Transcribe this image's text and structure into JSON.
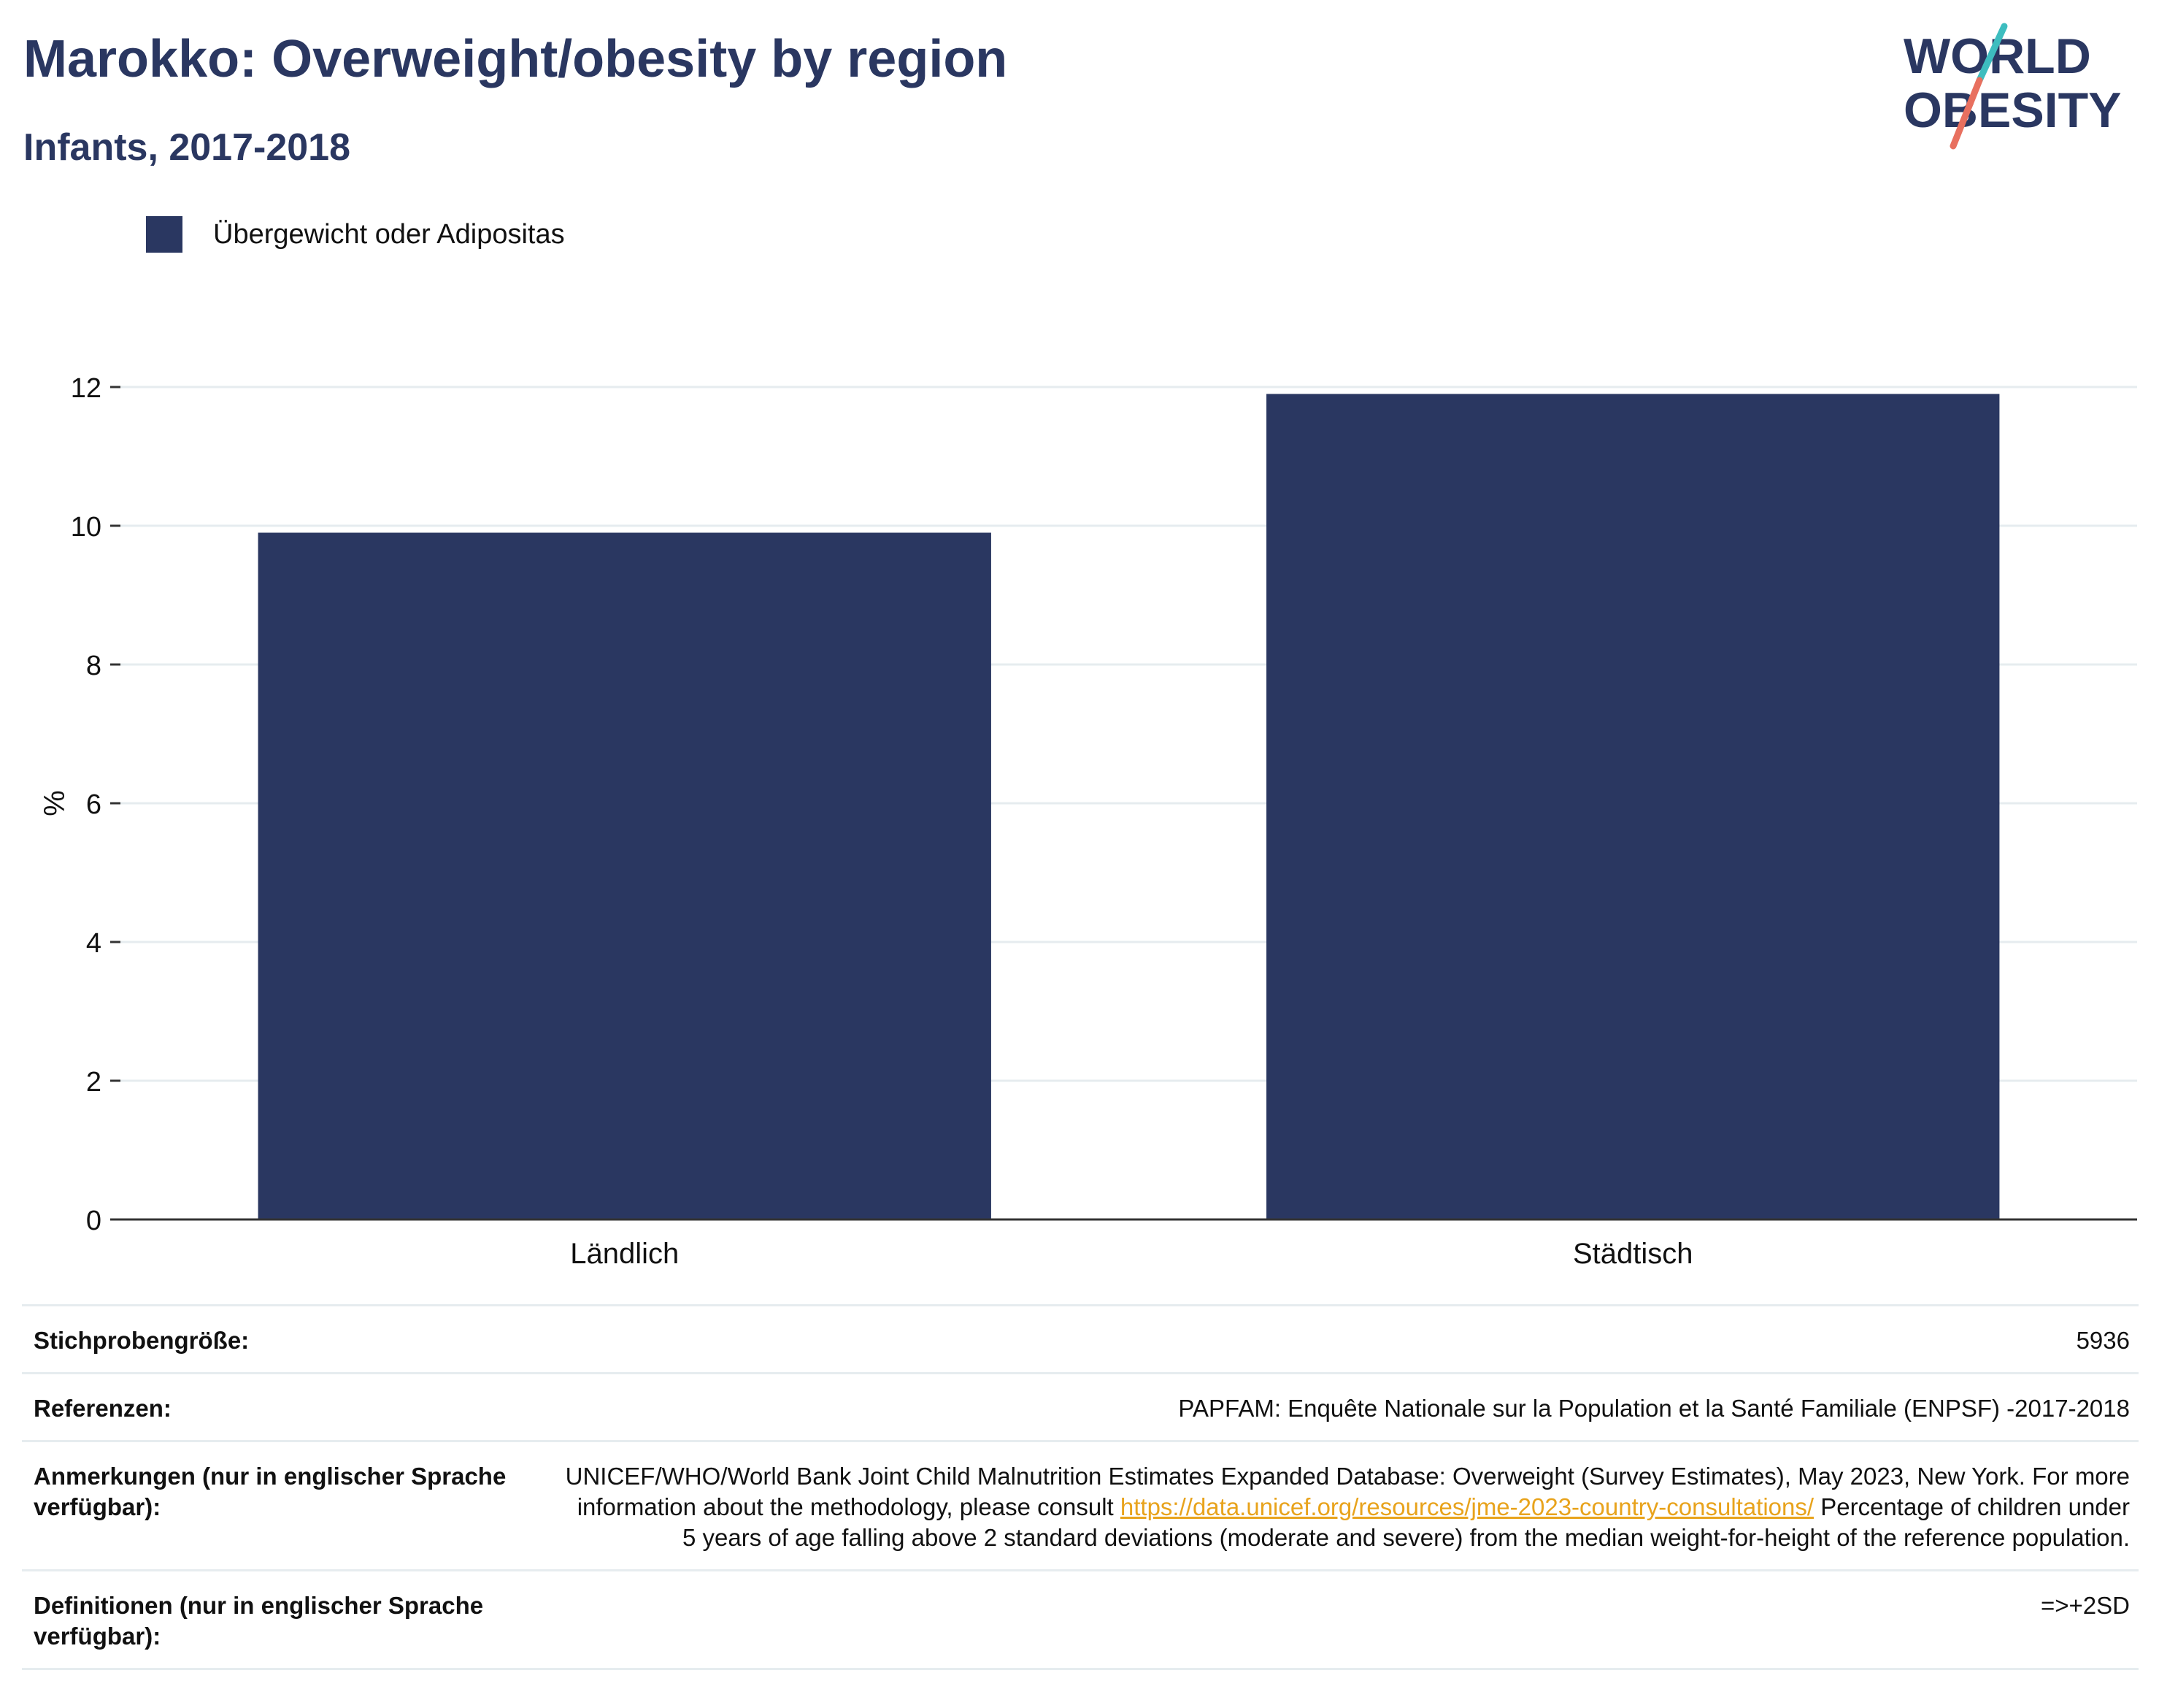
{
  "header": {
    "title": "Marokko: Overweight/obesity by region",
    "subtitle": "Infants, 2017-2018"
  },
  "logo": {
    "line1": "WORLD",
    "line2": "OBESITY",
    "colors": {
      "text": "#2a3761",
      "slash_top": "#3dbdbf",
      "slash_bottom": "#e8705f"
    }
  },
  "legend": {
    "items": [
      {
        "label": "Übergewicht oder Adipositas",
        "color": "#2a3761"
      }
    ],
    "placement": "top-left"
  },
  "chart_data": {
    "type": "bar",
    "categories": [
      "Ländlich",
      "Städtisch"
    ],
    "series": [
      {
        "name": "Übergewicht oder Adipositas",
        "values": [
          9.9,
          11.9
        ],
        "color": "#2a3761"
      }
    ],
    "title": "Marokko: Overweight/obesity by region",
    "subtitle": "Infants, 2017-2018",
    "xlabel": "",
    "ylabel": "%",
    "ylim": [
      0,
      12
    ],
    "yticks": [
      0,
      2,
      4,
      6,
      8,
      10,
      12
    ],
    "grid": true,
    "legend_placement": "top-left"
  },
  "meta": {
    "sample_size": {
      "label": "Stichprobengröße:",
      "value": "5936"
    },
    "references": {
      "label": "Referenzen:",
      "value": "PAPFAM: Enquête Nationale sur la Population et la Santé Familiale (ENPSF) -2017-2018"
    },
    "notes": {
      "label": "Anmerkungen (nur in englischer Sprache verfügbar):",
      "text_before": "UNICEF/WHO/World Bank Joint Child Malnutrition Estimates Expanded Database: Overweight (Survey Estimates), May 2023, New York. For more information about the methodology, please consult ",
      "link": "https://data.unicef.org/resources/jme-2023-country-consultations/",
      "text_after": " Percentage of children under 5 years of age falling above 2 standard deviations (moderate and severe) from the median weight-for-height of the reference population."
    },
    "definitions": {
      "label": "Definitionen (nur in englischer Sprache verfügbar):",
      "value": "=>+2SD"
    }
  }
}
